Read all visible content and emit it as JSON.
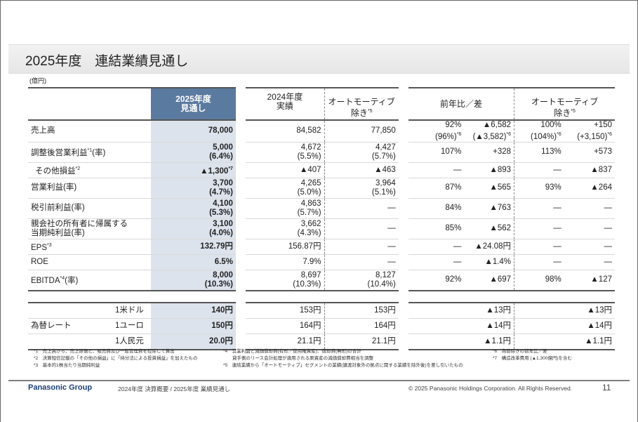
{
  "title": "2025年度　連結業績見通し",
  "unit": "(億円)",
  "headers": {
    "fy2025": "2025年度\n見通し",
    "fy2024": "2024年度\n実績",
    "auto_ex": "オートモーティブ\n除き*5",
    "yoy": "前年比／差",
    "auto_ex2": "オートモーティブ\n除き*5"
  },
  "rows": [
    {
      "label": "売上高",
      "fy25": "78,000",
      "fy24": "84,582",
      "ex": "77,850",
      "r1": "92%\n(96%)*6",
      "d1": "▲6,582\n(▲3,582)*6",
      "r2": "100%\n(104%)*6",
      "d2": "+150\n(+3,150)*6"
    },
    {
      "label": "調整後営業利益*1(率)",
      "fy25": "5,000\n(6.4%)",
      "fy24": "4,672\n(5.5%)",
      "ex": "4,427\n(5.7%)",
      "r1": "107%",
      "d1": "+328",
      "r2": "113%",
      "d2": "+573"
    },
    {
      "label": "その他損益*2",
      "fy25": "▲1,300*7",
      "fy24": "▲407",
      "ex": "▲463",
      "r1": "—",
      "d1": "▲893",
      "r2": "—",
      "d2": "▲837"
    },
    {
      "label": "営業利益(率)",
      "fy25": "3,700\n(4.7%)",
      "fy24": "4,265\n(5.0%)",
      "ex": "3,964\n(5.1%)",
      "r1": "87%",
      "d1": "▲565",
      "r2": "93%",
      "d2": "▲264"
    },
    {
      "label": "税引前利益(率)",
      "fy25": "4,100\n(5.3%)",
      "fy24": "4,863\n(5.7%)",
      "ex": "—",
      "r1": "84%",
      "d1": "▲763",
      "r2": "—",
      "d2": "—"
    },
    {
      "label": "親会社の所有者に帰属する\n当期純利益(率)",
      "fy25": "3,100\n(4.0%)",
      "fy24": "3,662\n(4.3%)",
      "ex": "—",
      "r1": "85%",
      "d1": "▲562",
      "r2": "—",
      "d2": "—"
    },
    {
      "label": "EPS*3",
      "fy25": "132.79円",
      "fy24": "156.87円",
      "ex": "—",
      "r1": "—",
      "d1": "▲24.08円",
      "r2": "—",
      "d2": "—"
    },
    {
      "label": "ROE",
      "fy25": "6.5%",
      "fy24": "7.9%",
      "ex": "—",
      "r1": "—",
      "d1": "▲1.4%",
      "r2": "—",
      "d2": "—"
    },
    {
      "label": "EBITDA*4(率)",
      "fy25": "8,000\n(10.3%)",
      "fy24": "8,697\n(10.3%)",
      "ex": "8,127\n(10.4%)",
      "r1": "92%",
      "d1": "▲697",
      "r2": "98%",
      "d2": "▲127"
    }
  ],
  "fx_label": "為替レート",
  "fx": [
    {
      "label": "1米ドル",
      "fy25": "140円",
      "fy24": "153円",
      "ex": "153円",
      "d1": "▲13円",
      "d2": "▲13円"
    },
    {
      "label": "1ユーロ",
      "fy25": "150円",
      "fy24": "164円",
      "ex": "164円",
      "d1": "▲14円",
      "d2": "▲14円"
    },
    {
      "label": "1人民元",
      "fy25": "20.0円",
      "fy24": "21.1円",
      "ex": "21.1円",
      "d1": "▲1.1円",
      "d2": "▲1.1円"
    }
  ],
  "notes_col1": [
    "*1　売上高から、売上原価と、販売費及び一般管理費を控除して算出",
    "*2　決算短信記載の「その他の損益」に「持分法による投資損益」を加えたもの",
    "*3　基本的1株当たり当期純利益"
  ],
  "notes_col2": [
    "*4　営業利益と減価償却費(有形／使用権資産)、償却費(無形)の合計",
    "　　貸手側のリース会計処理が適用される原資産の減価償却費相当を調整",
    "*5　連結業績から「オートモーティブ」セグメントの業績(譲渡対象外の拠点に関する業績を除外後)を差し引いたもの"
  ],
  "notes_col3": [
    "*6　為替除きの前年比／差",
    "*7　構造改革費用 (▲1,300億円)を含む"
  ],
  "footer": {
    "logo": "Panasonic Group",
    "subtitle": "2024年度 決算概要 / 2025年度 業績見通し",
    "copyright": "© 2025 Panasonic Holdings Corporation. All Rights Reserved.",
    "page": "11"
  }
}
